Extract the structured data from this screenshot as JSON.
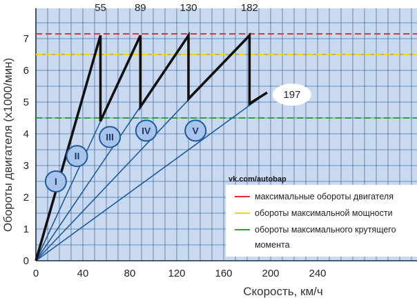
{
  "chart_data": {
    "type": "line",
    "xlabel": "Скорость, км/ч",
    "ylabel": "Обороты двигателя (х1000/мин)",
    "xlim": [
      0,
      240
    ],
    "ylim": [
      0,
      7.5
    ],
    "x_ticks": [
      "0",
      "40",
      "80",
      "120",
      "160",
      "200",
      "240"
    ],
    "y_ticks": [
      "0",
      "1",
      "2",
      "3",
      "4",
      "5",
      "6",
      "7"
    ],
    "grid": true,
    "gears": [
      {
        "name": "I",
        "max_speed": 55,
        "max_speed_label": "55",
        "label_speed": 17,
        "label_rpm": 2.5
      },
      {
        "name": "II",
        "max_speed": 89,
        "max_speed_label": "89",
        "label_speed": 35,
        "label_rpm": 3.3
      },
      {
        "name": "III",
        "max_speed": 130,
        "max_speed_label": "130",
        "label_speed": 63,
        "label_rpm": 3.9
      },
      {
        "name": "IV",
        "max_speed": 182,
        "max_speed_label": "182",
        "label_speed": 94,
        "label_rpm": 4.1
      },
      {
        "name": "V",
        "max_speed": 197,
        "max_speed_label": "197",
        "label_speed": 136,
        "label_rpm": 4.1
      }
    ],
    "gear_end_rpm": [
      7.1,
      7.1,
      7.1,
      7.1,
      5.3
    ],
    "shift_path": [
      [
        0,
        0
      ],
      [
        55,
        7.1
      ],
      [
        55,
        4.4
      ],
      [
        89,
        7.1
      ],
      [
        89,
        4.85
      ],
      [
        130,
        7.1
      ],
      [
        130,
        5.1
      ],
      [
        182,
        7.1
      ],
      [
        182,
        4.95
      ],
      [
        197,
        5.3
      ]
    ],
    "reference_lines": [
      {
        "name": "максимальные обороты двигателя",
        "rpm": 7.15,
        "color": "#e0302a"
      },
      {
        "name": "обороты максимальной мощности",
        "rpm": 6.5,
        "color": "#f2d21b"
      },
      {
        "name": "обороты максимального крутящего момента",
        "rpm": 4.5,
        "color": "#2e9e3e"
      }
    ],
    "legend_placement": "bottom-right"
  },
  "watermark": "vk.com/autobap",
  "legend": {
    "line1": "максимальные обороты двигателя",
    "line2": "обороты максимальной мощности",
    "line3": "обороты максимального крутящего",
    "line4": "момента"
  },
  "colors": {
    "grid_bg": "#c9daf0",
    "grid_line": "#1f4f8f",
    "gear_line": "#1d5a9c",
    "shift_path": "#111111",
    "gear_circle_fill": "#a9c4ea",
    "gear_circle_stroke": "#1d5a9c"
  }
}
